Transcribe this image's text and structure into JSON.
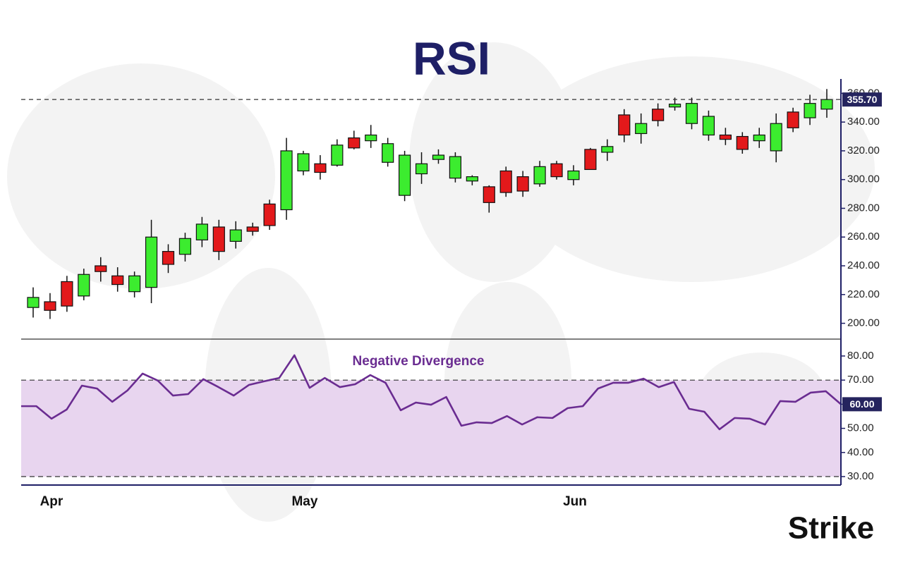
{
  "chart_data": [
    {
      "type": "candlestick",
      "title": "RSI",
      "categories": [
        null,
        "Apr",
        null,
        null,
        null,
        null,
        null,
        null,
        null,
        null,
        null,
        null,
        null,
        null,
        null,
        null,
        "May",
        null,
        null,
        null,
        null,
        null,
        null,
        null,
        null,
        null,
        null,
        null,
        null,
        null,
        null,
        null,
        "Jun",
        null,
        null,
        null,
        null,
        null,
        null,
        null,
        null,
        null,
        null,
        null,
        null,
        null,
        null,
        null
      ],
      "open": [
        211,
        215,
        229,
        219,
        240,
        233,
        222,
        225,
        250,
        248,
        258,
        267,
        257,
        267,
        283,
        279,
        306,
        311,
        310,
        329,
        327,
        312,
        289,
        304,
        314,
        301,
        299,
        295,
        306,
        302,
        297,
        311,
        300,
        321,
        319,
        345,
        332,
        349,
        350.5,
        339,
        331,
        331,
        330,
        327,
        320,
        347,
        343,
        349
      ],
      "high": [
        225,
        221,
        233,
        238,
        246,
        239,
        236,
        272,
        255,
        263,
        274,
        272,
        271,
        270,
        286,
        329,
        320,
        317,
        328,
        334,
        338,
        329,
        320,
        319,
        321,
        319,
        303,
        296,
        309,
        306,
        313,
        313,
        310,
        322,
        328,
        349,
        346,
        353,
        357,
        357,
        348,
        336,
        333,
        336,
        346,
        350,
        359,
        363
      ],
      "low": [
        204,
        203,
        208,
        216,
        229,
        222,
        218,
        214,
        235,
        243,
        253,
        244,
        252,
        261,
        265,
        272,
        303,
        300,
        309,
        321,
        322,
        309,
        285,
        297,
        311,
        298,
        296,
        277,
        288,
        288,
        295,
        300,
        296,
        307,
        313,
        326,
        325,
        337,
        348,
        335,
        327,
        324,
        318,
        322,
        312,
        333,
        338,
        343
      ],
      "close": [
        218,
        209,
        212,
        234,
        236,
        227,
        233,
        260,
        241,
        259,
        269,
        250,
        265,
        264,
        268,
        320,
        318,
        305,
        324,
        322,
        331,
        325,
        317,
        311,
        317,
        316,
        302,
        284,
        291,
        292,
        309,
        302,
        306,
        307,
        323,
        331,
        339,
        341,
        352.5,
        353,
        344,
        328,
        321,
        331,
        339,
        336,
        353,
        355.7
      ],
      "last_label": "355.70",
      "up_color": "#3cec2f",
      "down_color": "#e3191b",
      "ylim": [
        189,
        370
      ],
      "yticks": [
        {
          "value": 200,
          "label": "200.00"
        },
        {
          "value": 220,
          "label": "220.00"
        },
        {
          "value": 240,
          "label": "240.00"
        },
        {
          "value": 260,
          "label": "260.00"
        },
        {
          "value": 280,
          "label": "280.00"
        },
        {
          "value": 300,
          "label": "300.00"
        },
        {
          "value": 320,
          "label": "320.00"
        },
        {
          "value": 340,
          "label": "340.00"
        },
        {
          "value": 360,
          "label": "360.00"
        }
      ]
    },
    {
      "type": "line",
      "annotation": "Negative Divergence",
      "color": "#6a2c91",
      "values": [
        59.2,
        59.2,
        54.0,
        57.8,
        67.7,
        66.5,
        61.0,
        65.7,
        72.7,
        69.8,
        63.6,
        64.2,
        70.4,
        67.1,
        63.6,
        68.0,
        69.5,
        70.9,
        80.3,
        66.8,
        70.9,
        67.1,
        68.3,
        72.1,
        68.9,
        57.5,
        60.7,
        59.8,
        63.0,
        51.1,
        52.5,
        52.2,
        55.1,
        51.6,
        54.6,
        54.3,
        58.4,
        59.2,
        66.5,
        68.9,
        68.9,
        70.6,
        67.1,
        69.2,
        58.1,
        56.9,
        49.6,
        54.3,
        54.0,
        51.6,
        61.3,
        61.0,
        64.8,
        65.4,
        60
      ],
      "last_label": "60.00",
      "levels": [
        70,
        30
      ],
      "band_color": "#e8d5ef",
      "ylim": [
        26.5,
        87
      ],
      "yticks": [
        {
          "value": 30,
          "label": "30.00"
        },
        {
          "value": 40,
          "label": "40.00"
        },
        {
          "value": 50,
          "label": "50.00"
        },
        {
          "value": 60,
          "label": "60.00"
        },
        {
          "value": 70,
          "label": "70.00"
        },
        {
          "value": 80,
          "label": "80.00"
        }
      ]
    }
  ],
  "brand": "Strike"
}
